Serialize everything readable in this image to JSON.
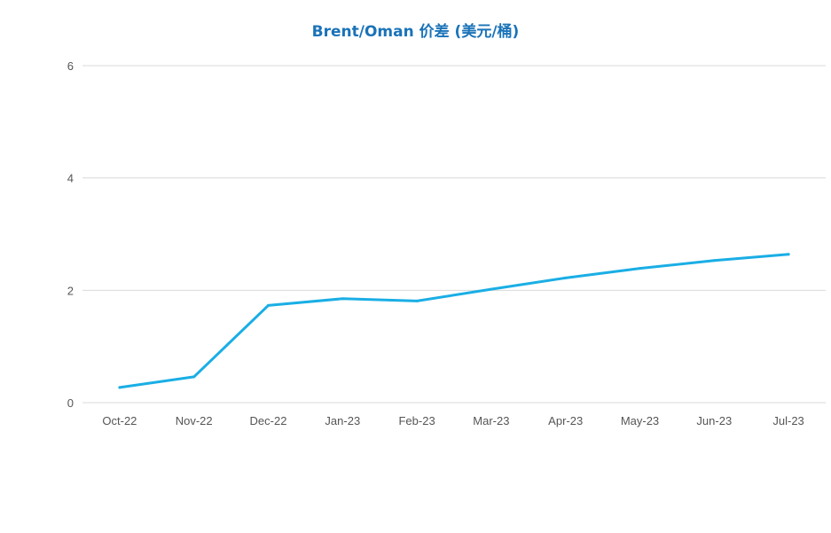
{
  "chart_data": {
    "type": "line",
    "title": "Brent/Oman 价差 (美元/桶)",
    "xlabel": "",
    "ylabel": "",
    "categories": [
      "Oct-22",
      "Nov-22",
      "Dec-22",
      "Jan-23",
      "Feb-23",
      "Mar-23",
      "Apr-23",
      "May-23",
      "Jun-23",
      "Jul-23"
    ],
    "series": [
      {
        "values": [
          0.27,
          0.46,
          1.73,
          1.85,
          1.81,
          2.02,
          2.22,
          2.39,
          2.53,
          2.64
        ]
      }
    ],
    "ylim": [
      0,
      6
    ],
    "yticks": [
      0,
      2,
      4,
      6
    ],
    "grid": true,
    "colors": {
      "line": "#1aaee5",
      "title": "#1a73b8",
      "grid": "#d9d9d9"
    }
  }
}
